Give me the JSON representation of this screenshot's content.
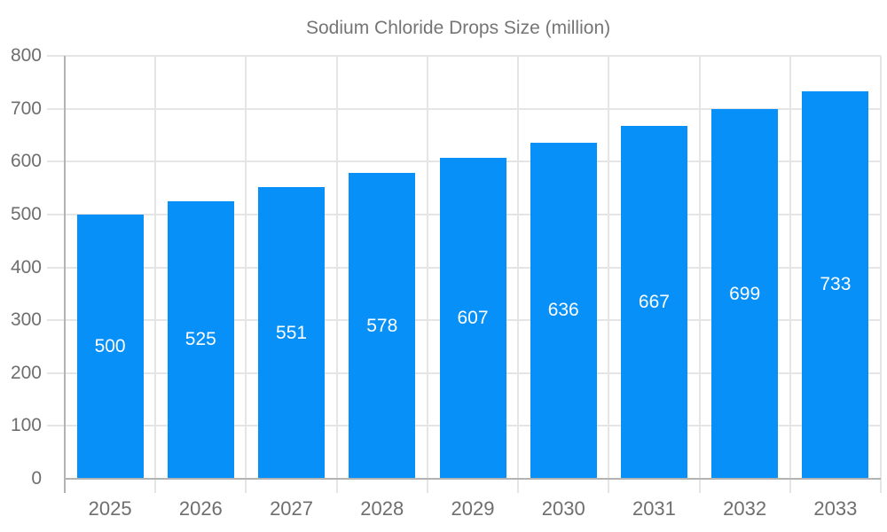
{
  "chart_data": {
    "type": "bar",
    "title": "",
    "legend": "Sodium Chloride Drops Size (million)",
    "legend_position": "top",
    "categories": [
      "2025",
      "2026",
      "2027",
      "2028",
      "2029",
      "2030",
      "2031",
      "2032",
      "2033"
    ],
    "series": [
      {
        "name": "Sodium Chloride Drops Size (million)",
        "values": [
          500,
          525,
          551,
          578,
          607,
          636,
          667,
          699,
          733
        ]
      }
    ],
    "values": [
      500,
      525,
      551,
      578,
      607,
      636,
      667,
      699,
      733
    ],
    "value_labels_shown": true,
    "xlabel": "",
    "ylabel": "",
    "ylim": [
      0,
      800
    ],
    "ytick_step": 100,
    "yticks": [
      "0",
      "100",
      "200",
      "300",
      "400",
      "500",
      "600",
      "700",
      "800"
    ],
    "grid": true,
    "colors": {
      "bar": "#0790f8",
      "bar_value_text": "#ffffff",
      "axis_tick_text": "#6e6e6e",
      "legend_text": "#757575",
      "gridline": "#e5e5e5",
      "axis_line": "#b3b3b3",
      "background": "#ffffff"
    }
  }
}
